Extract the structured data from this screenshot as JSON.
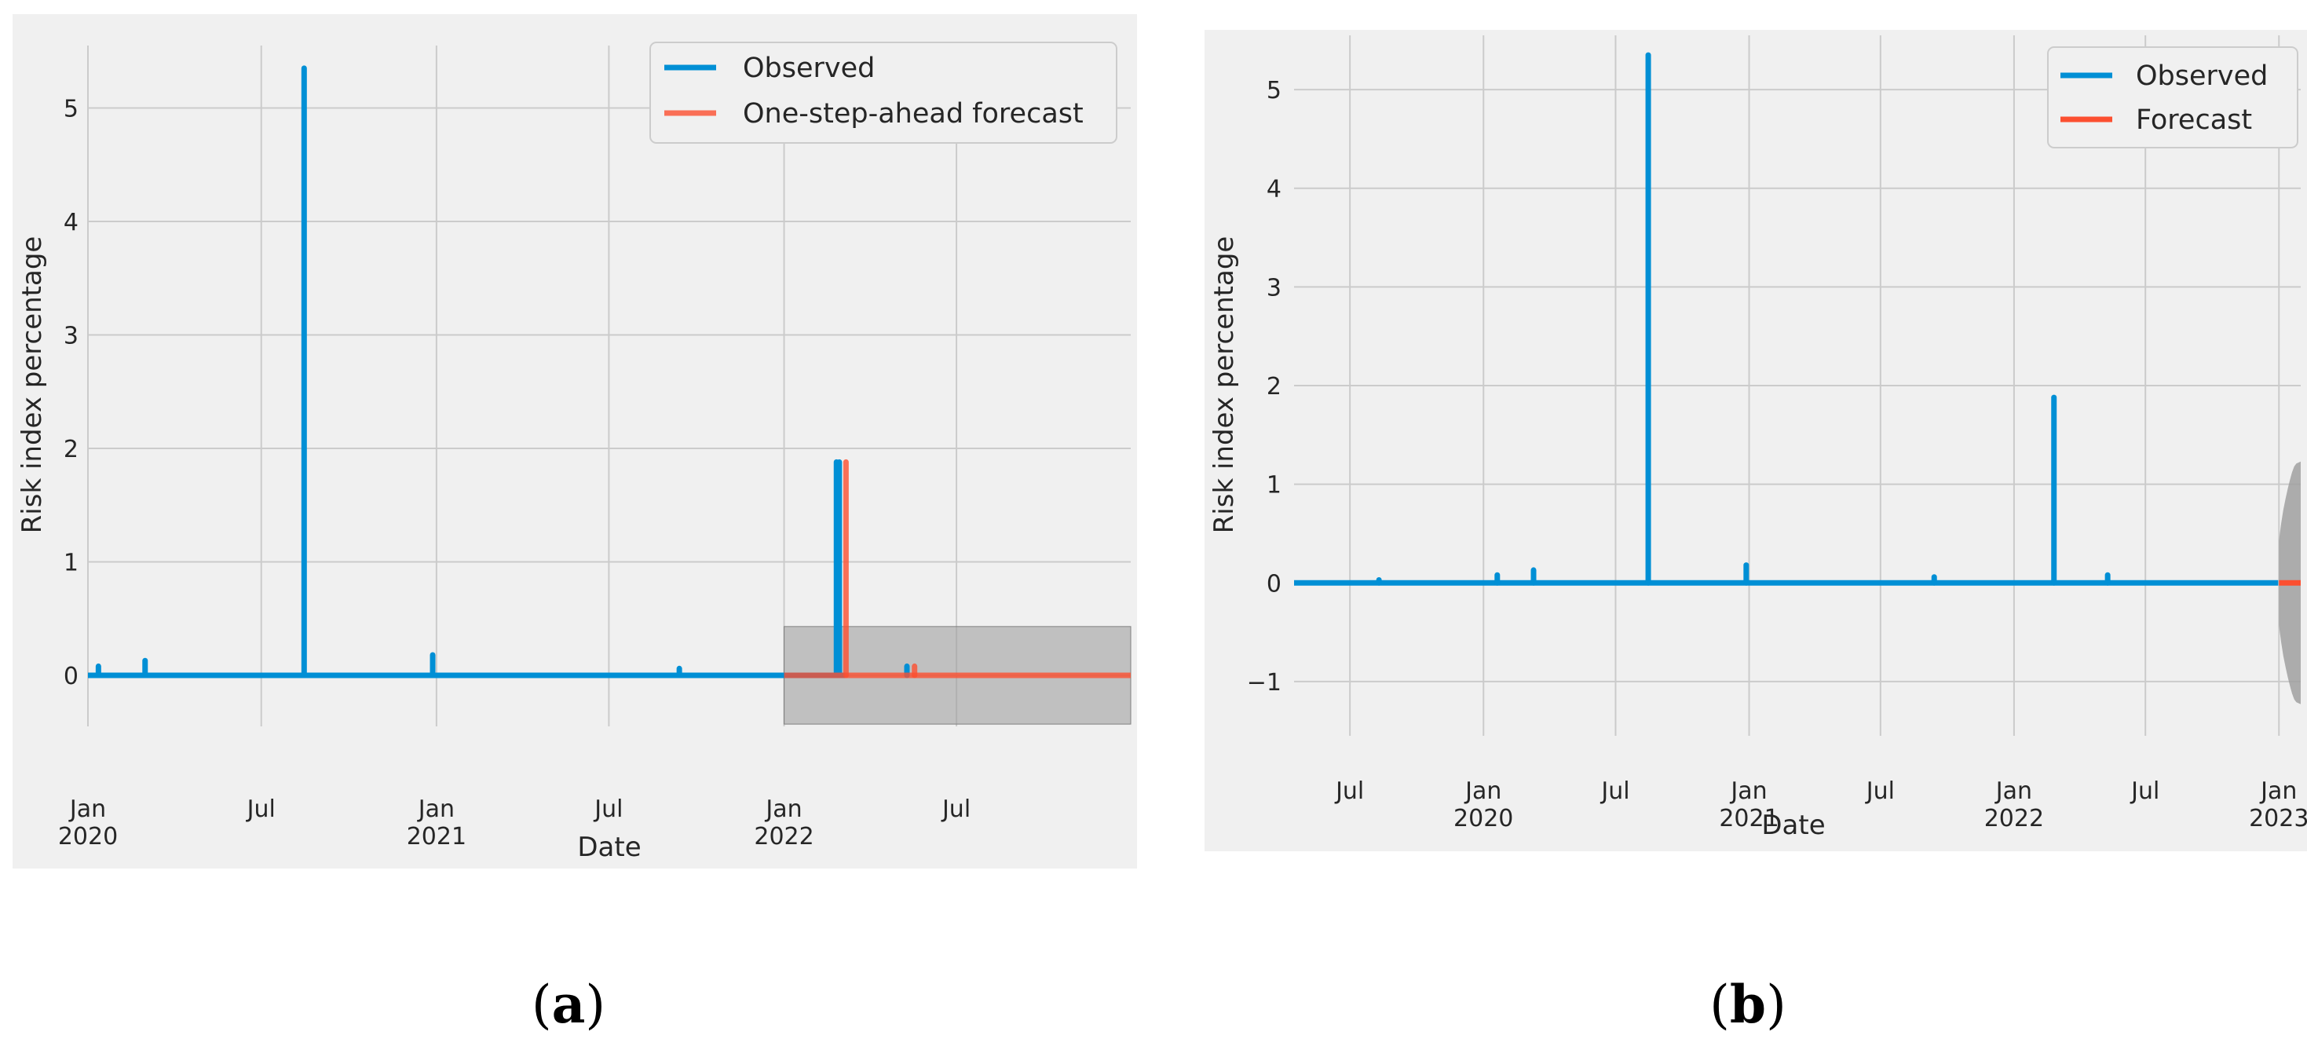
{
  "chart_data": [
    {
      "type": "line",
      "panel_label": "a",
      "xlabel": "Date",
      "ylabel": "Risk index percentage",
      "x_range": [
        "2020-01-01",
        "2022-12-31"
      ],
      "ylim": [
        -0.45,
        5.55
      ],
      "yticks": [
        0,
        1,
        2,
        3,
        4,
        5
      ],
      "xticks": [
        {
          "date": "2020-01-01",
          "label": "Jan",
          "year": "2020"
        },
        {
          "date": "2020-07-01",
          "label": "Jul",
          "year": ""
        },
        {
          "date": "2021-01-01",
          "label": "Jan",
          "year": "2021"
        },
        {
          "date": "2021-07-01",
          "label": "Jul",
          "year": ""
        },
        {
          "date": "2022-01-01",
          "label": "Jan",
          "year": "2022"
        },
        {
          "date": "2022-07-01",
          "label": "Jul",
          "year": ""
        }
      ],
      "grid": true,
      "legend": {
        "position": "top-right"
      },
      "series": [
        {
          "name": "Observed",
          "color": "#008fd5",
          "baseline": 0.0,
          "x_start": "2020-01-01",
          "x_end": "2022-03-06",
          "spikes": [
            {
              "date": "2020-01-12",
              "value": 0.08
            },
            {
              "date": "2020-03-01",
              "value": 0.13
            },
            {
              "date": "2020-08-15",
              "value": 5.35
            },
            {
              "date": "2020-12-28",
              "value": 0.18
            },
            {
              "date": "2021-09-13",
              "value": 0.06
            },
            {
              "date": "2022-02-25",
              "value": 1.88
            },
            {
              "date": "2022-02-28",
              "value": 1.88
            },
            {
              "date": "2022-05-10",
              "value": 0.08
            }
          ]
        },
        {
          "name": "One-step-ahead forecast",
          "color": "#fc4f30",
          "baseline": 0.0,
          "x_start": "2022-01-01",
          "x_end": "2022-12-31",
          "spikes": [
            {
              "date": "2022-03-07",
              "value": 1.88
            },
            {
              "date": "2022-05-18",
              "value": 0.08
            }
          ]
        }
      ],
      "confidence_band": {
        "x_start": "2022-01-01",
        "x_end": "2022-12-31",
        "lower": -0.43,
        "upper": 0.43,
        "color": "#a0a0a0"
      }
    },
    {
      "type": "line",
      "panel_label": "b",
      "xlabel": "Date",
      "ylabel": "Risk index percentage",
      "x_range": [
        "2019-04-15",
        "2023-01-31"
      ],
      "ylim": [
        -1.55,
        5.55
      ],
      "yticks": [
        -1,
        0,
        1,
        2,
        3,
        4,
        5
      ],
      "xticks": [
        {
          "date": "2019-07-01",
          "label": "Jul",
          "year": ""
        },
        {
          "date": "2020-01-01",
          "label": "Jan",
          "year": "2020"
        },
        {
          "date": "2020-07-01",
          "label": "Jul",
          "year": ""
        },
        {
          "date": "2021-01-01",
          "label": "Jan",
          "year": "2021"
        },
        {
          "date": "2021-07-01",
          "label": "Jul",
          "year": ""
        },
        {
          "date": "2022-01-01",
          "label": "Jan",
          "year": "2022"
        },
        {
          "date": "2022-07-01",
          "label": "Jul",
          "year": ""
        },
        {
          "date": "2023-01-01",
          "label": "Jan",
          "year": "2023"
        }
      ],
      "grid": true,
      "legend": {
        "position": "top-right"
      },
      "series": [
        {
          "name": "Observed",
          "color": "#008fd5",
          "baseline": 0.0,
          "x_start": "2019-04-15",
          "x_end": "2022-12-31",
          "spikes": [
            {
              "date": "2019-08-10",
              "value": 0.03
            },
            {
              "date": "2020-01-20",
              "value": 0.08
            },
            {
              "date": "2020-03-10",
              "value": 0.13
            },
            {
              "date": "2020-08-15",
              "value": 5.35
            },
            {
              "date": "2020-12-28",
              "value": 0.18
            },
            {
              "date": "2021-09-13",
              "value": 0.06
            },
            {
              "date": "2022-02-25",
              "value": 1.88
            },
            {
              "date": "2022-05-10",
              "value": 0.08
            }
          ]
        },
        {
          "name": "Forecast",
          "color": "#fc4f30",
          "baseline": 0.0,
          "x_start": "2023-01-01",
          "x_end": "2023-01-31",
          "spikes": []
        }
      ],
      "confidence_band": {
        "type": "widening",
        "x_start": "2023-01-01",
        "x_end": "2023-01-31",
        "points": [
          {
            "date": "2023-01-01",
            "half_width": 0.43
          },
          {
            "date": "2023-01-04",
            "half_width": 0.6
          },
          {
            "date": "2023-01-07",
            "half_width": 0.74
          },
          {
            "date": "2023-01-10",
            "half_width": 0.85
          },
          {
            "date": "2023-01-13",
            "half_width": 0.95
          },
          {
            "date": "2023-01-16",
            "half_width": 1.04
          },
          {
            "date": "2023-01-19",
            "half_width": 1.12
          },
          {
            "date": "2023-01-22",
            "half_width": 1.18
          },
          {
            "date": "2023-01-25",
            "half_width": 1.21
          },
          {
            "date": "2023-01-31",
            "half_width": 1.23
          }
        ],
        "color": "#a0a0a0"
      }
    }
  ],
  "captions": [
    {
      "open": "(",
      "label": "a",
      "close": ")"
    },
    {
      "open": "(",
      "label": "b",
      "close": ")"
    }
  ]
}
